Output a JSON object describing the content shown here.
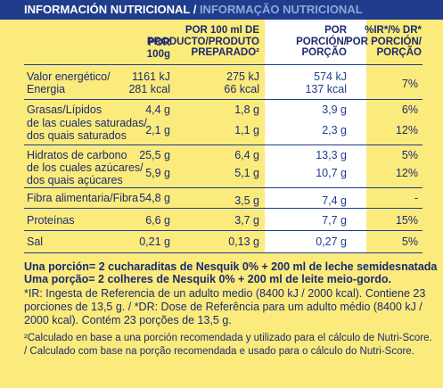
{
  "title": {
    "es": "INFORMACIÓN NUTRICIONAL",
    "separator": " / ",
    "pt": "INFORMAÇÃO NUTRICIONAL"
  },
  "header": {
    "col1": [
      "POR",
      "100g"
    ],
    "col2": [
      "POR 100 ml DE",
      "PRODUCTO/PRODUTO",
      "PREPARADO²"
    ],
    "col3": [
      "POR",
      "PORCIÓN/",
      "PORÇÃO"
    ],
    "col4": [
      "%IR*/% DR*",
      "POR PORCIÓN/",
      "PORÇÃO"
    ]
  },
  "rows": {
    "energia": {
      "label": [
        "Valor energético/",
        "Energia"
      ],
      "per100g": [
        "1161 kJ",
        "281 kcal"
      ],
      "per100ml": [
        "275 kJ",
        "66 kcal"
      ],
      "portion": [
        "574 kJ",
        "137 kcal"
      ],
      "ri": "7%"
    },
    "grasas": {
      "label": "Grasas/Lípidos",
      "per100g": "4,4 g",
      "per100ml": "1,8 g",
      "portion": "3,9 g",
      "ri": "6%"
    },
    "saturadas": {
      "label": [
        "de las cuales saturadas/",
        "dos quais saturados"
      ],
      "per100g": "2,1 g",
      "per100ml": "1,1 g",
      "portion": "2,3 g",
      "ri": "12%"
    },
    "hidratos": {
      "label": "Hidratos de carbono",
      "per100g": "25,5 g",
      "per100ml": "6,4 g",
      "portion": "13,3 g",
      "ri": "5%"
    },
    "azucares": {
      "label": [
        "de los cuales azúcares/",
        "dos quais açúcares"
      ],
      "per100g": "5,9 g",
      "per100ml": "5,1 g",
      "portion": "10,7 g",
      "ri": "12%"
    },
    "fibra": {
      "label": "Fibra alimentaria/Fibra",
      "per100g": "54,8 g",
      "per100ml": "3,5 g",
      "portion": "7,4 g",
      "ri": "-"
    },
    "proteinas": {
      "label": "Proteínas",
      "per100g": "6,6 g",
      "per100ml": "3,7 g",
      "portion": "7,7 g",
      "ri": "15%"
    },
    "sal": {
      "label": "Sal",
      "per100g": "0,21 g",
      "per100ml": "0,13 g",
      "portion": "0,27 g",
      "ri": "5%"
    }
  },
  "footnotes": {
    "portion_es": "Una porción= 2 cucharaditas de Nesquik 0% + 200 ml de leche semidesnatada",
    "portion_pt": "Uma porção= 2 colheres de Nesquik 0% + 200 ml de leite meio-gordo.",
    "ir": [
      "*IR: Ingesta de Referencia de un adulto medio (8400 kJ / 2000 kcal). Contiene 23",
      "porciones de 13,5 g. / *DR: Dose de Referência para um adulto médio (8400 kJ /",
      "2000 kcal). Contém 23 porções de 13,5 g."
    ],
    "calc": [
      "²Calculado en base a una porción recomendada y utilizado para el cálculo de Nutri-Score.",
      "/ Calculado com base na porção recomendada e usado para o cálculo do Nutri-Score."
    ]
  },
  "colors": {
    "background": "#fbeb7c",
    "header_bar": "#1f3d8c",
    "text": "#1c2a6e",
    "portion_column": "#ffffff"
  }
}
